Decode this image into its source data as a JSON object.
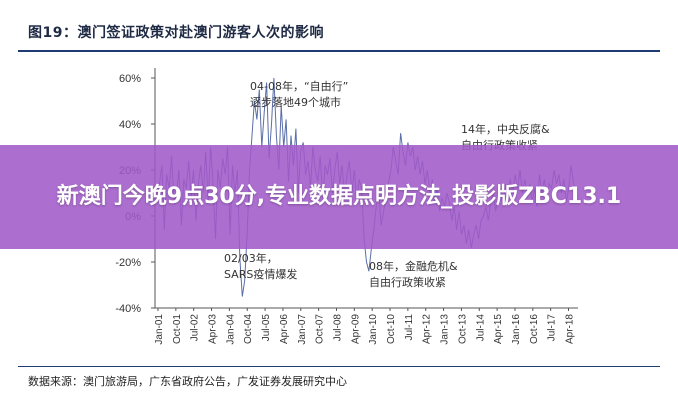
{
  "figure_title": "图19：澳门签证政策对赴澳门游客人次的影响",
  "source_text": "数据来源：澳门旅游局，广东省政府公告，广发证券发展研究中心",
  "banner": {
    "text": "新澳门今晚9点30分,专业数据点明方法_投影版ZBC13.1"
  },
  "colors": {
    "series": "#5a6ea8",
    "axis": "#555555",
    "banner": "#a05ac8",
    "title_rule": "#1f3b73"
  },
  "chart_data": {
    "type": "line",
    "title": "",
    "xlabel": "",
    "ylabel": "",
    "ylim": [
      -40,
      60
    ],
    "y_ticks": [
      "60%",
      "40%",
      "20%",
      "0%",
      "-20%",
      "-40%"
    ],
    "x_tick_labels": [
      "Jan-01",
      "Oct-01",
      "Jul-02",
      "Apr-03",
      "Jan-04",
      "Oct-04",
      "Jul-05",
      "Apr-06",
      "Jan-07",
      "Oct-07",
      "Jul-08",
      "Apr-09",
      "Jan-10",
      "Oct-10",
      "Jul-11",
      "Apr-12",
      "Jan-13",
      "Oct-13",
      "Jul-14",
      "Apr-15",
      "Jan-16",
      "Oct-16",
      "Jul-17",
      "Apr-18"
    ],
    "grid": false,
    "legend": "none",
    "annotations": [
      {
        "lines": [
          "04-08年，“自由行”",
          "逐步落地49个城市"
        ]
      },
      {
        "lines": [
          "14年，中央反腐&",
          "自由行政策收紧"
        ]
      },
      {
        "lines": [
          "02/03年，",
          "SARS疫情爆发"
        ]
      },
      {
        "lines": [
          "08年，金融危机&",
          "自由行政策收紧"
        ]
      }
    ],
    "series": [
      {
        "values": [
          8,
          14,
          22,
          -6,
          18,
          12,
          26,
          5,
          10,
          20,
          -4,
          16,
          12,
          24,
          8,
          20,
          -2,
          14,
          22,
          10,
          28,
          6,
          30,
          15,
          -10,
          20,
          12,
          25,
          18,
          30,
          -8,
          22,
          10,
          20,
          -18,
          -35,
          -28,
          -8,
          20,
          35,
          50,
          42,
          55,
          30,
          45,
          58,
          25,
          40,
          60,
          35,
          20,
          48,
          30,
          42,
          15,
          35,
          22,
          38,
          10,
          28,
          32,
          18,
          24,
          12,
          30,
          20,
          15,
          26,
          8,
          22,
          18,
          25,
          10,
          20,
          28,
          14,
          22,
          8,
          18,
          24,
          10,
          20,
          6,
          16,
          12,
          -10,
          -20,
          -24,
          -14,
          -6,
          4,
          10,
          -4,
          2,
          8,
          14,
          20,
          30,
          24,
          18,
          36,
          28,
          22,
          32,
          26,
          30,
          20,
          26,
          18,
          24,
          14,
          20,
          10,
          16,
          6,
          12,
          2,
          8,
          4,
          10,
          6,
          -2,
          4,
          -6,
          2,
          -8,
          -4,
          -12,
          -6,
          -14,
          -8,
          -4,
          -10,
          -2,
          0,
          4,
          -2,
          6,
          10,
          2,
          8,
          12,
          4,
          14,
          8,
          16,
          10,
          18,
          12,
          20,
          10,
          16,
          8,
          14,
          6,
          12,
          4,
          18,
          10,
          16,
          8,
          14,
          12,
          20,
          14,
          18,
          10,
          16,
          6,
          12,
          22,
          14,
          10
        ]
      }
    ]
  }
}
